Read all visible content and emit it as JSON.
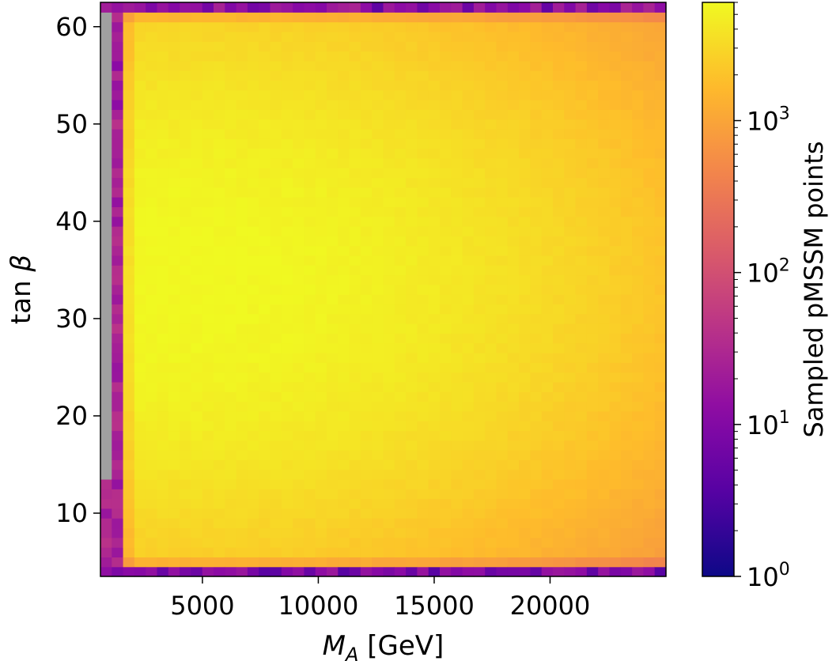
{
  "chart_data": {
    "type": "heatmap",
    "title": "",
    "xlabel_main": "M",
    "xlabel_sub": "A",
    "xlabel_unit": " [GeV]",
    "ylabel_main": "tan ",
    "ylabel_symbol": "β",
    "colorbar_label": "Sampled pMSSM points",
    "xlim": [
      600,
      25000
    ],
    "ylim": [
      3.5,
      62.5
    ],
    "x_ticks": [
      5000,
      10000,
      15000,
      20000
    ],
    "x_tick_labels": [
      "5000",
      "10000",
      "15000",
      "20000"
    ],
    "y_ticks": [
      10,
      20,
      30,
      40,
      50,
      60
    ],
    "y_tick_labels": [
      "10",
      "20",
      "30",
      "40",
      "50",
      "60"
    ],
    "color_scale": "log",
    "colormap": "plasma",
    "color_range": [
      1,
      6000
    ],
    "colorbar_ticks": [
      {
        "value": 1,
        "base": "10",
        "exp": "0"
      },
      {
        "value": 10,
        "base": "10",
        "exp": "1"
      },
      {
        "value": 100,
        "base": "10",
        "exp": "2"
      },
      {
        "value": 1000,
        "base": "10",
        "exp": "3"
      }
    ],
    "bins": {
      "nx": 50,
      "ny": 59
    },
    "density_peak": {
      "x": 3500,
      "y": 34,
      "count": 6000
    },
    "edge_counts": {
      "low_tanb_row": 15,
      "high_tanb_row": 20,
      "low_mass_column": 30
    },
    "no_data_color": "#a0a0a0",
    "no_data_region": {
      "x": [
        600,
        1100
      ],
      "y": [
        14,
        61
      ]
    },
    "empty_bins_color": "#ffffff"
  }
}
